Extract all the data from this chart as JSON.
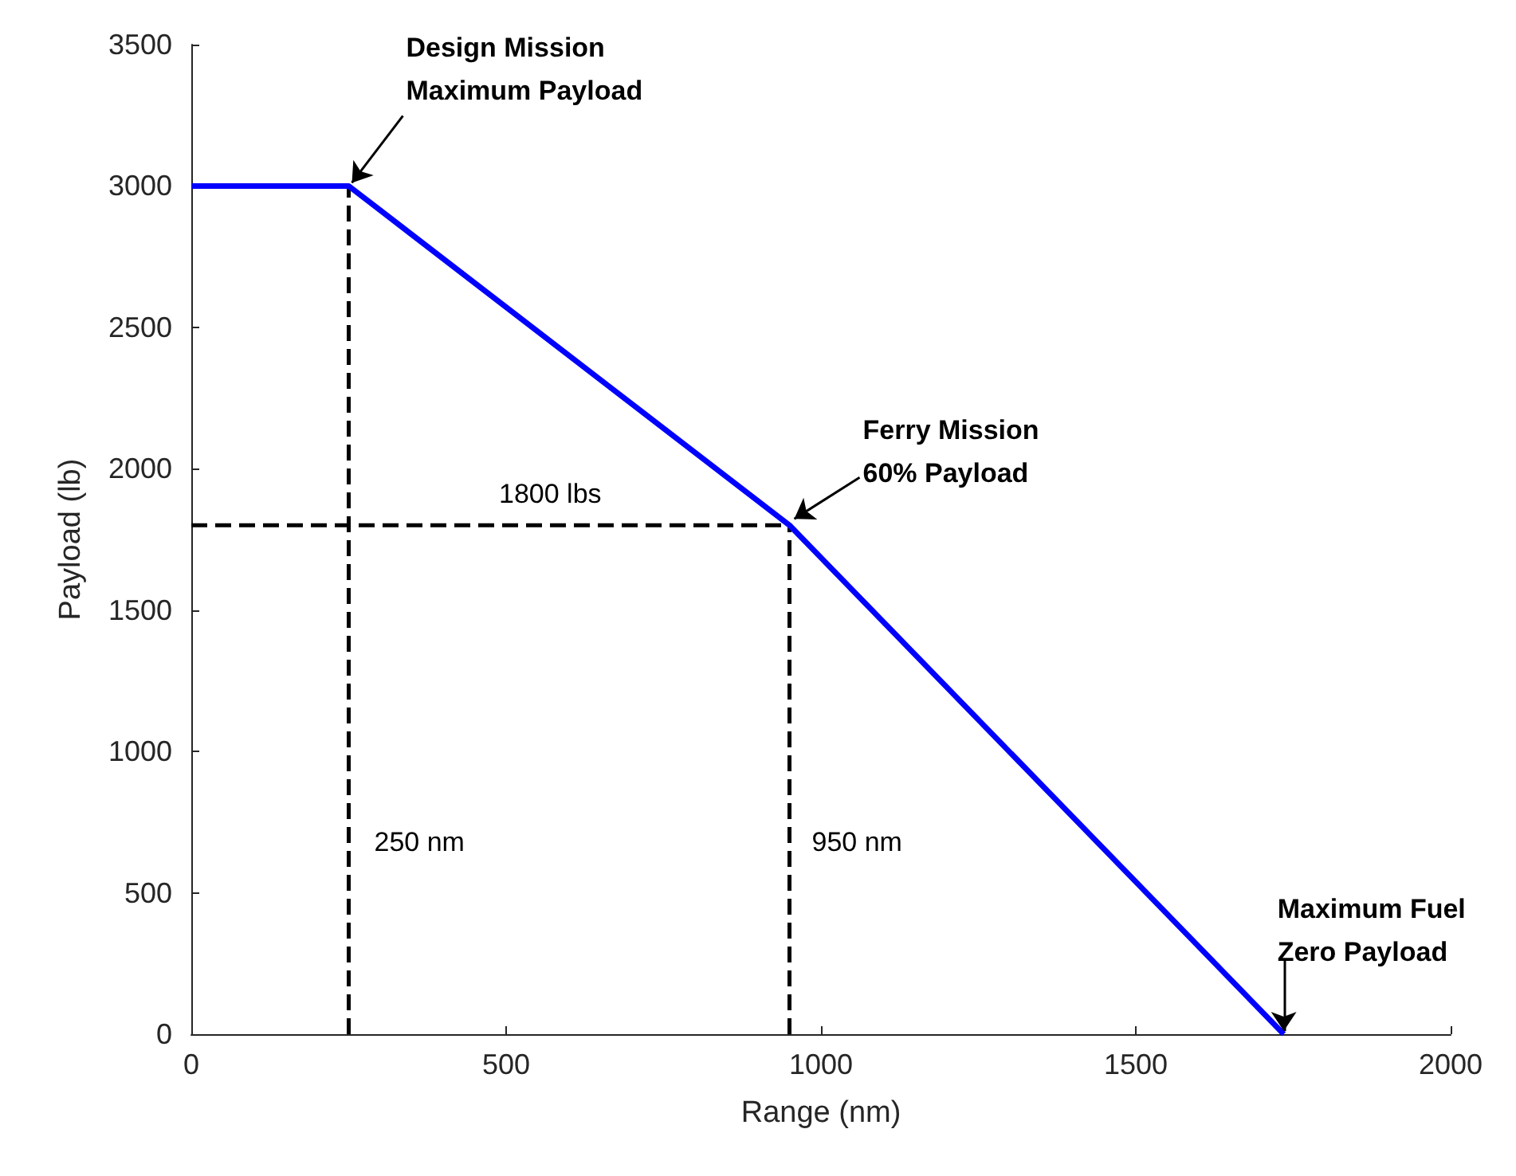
{
  "chart_data": {
    "type": "line",
    "xlabel": "Range (nm)",
    "ylabel": "Payload (lb)",
    "xlim": [
      0,
      2000
    ],
    "xticks": [
      0,
      500,
      1000,
      1500,
      2000
    ],
    "ylim": [
      0,
      3500
    ],
    "yticks": [
      0,
      500,
      1000,
      1500,
      2000,
      2500,
      3000,
      3500
    ],
    "grid": false,
    "marker": "none",
    "series": [
      {
        "color": "#0000ff",
        "x": [
          0,
          250,
          950,
          1735
        ],
        "values": [
          3000,
          3000,
          1800,
          0
        ],
        "line_style": "solid"
      },
      {
        "color": "#000000",
        "x": [
          250,
          250
        ],
        "values": [
          0,
          3000
        ],
        "line_style": "dashed"
      },
      {
        "color": "#000000",
        "x": [
          0,
          950
        ],
        "values": [
          1800,
          1800
        ],
        "line_style": "dashed"
      },
      {
        "color": "#000000",
        "x": [
          950,
          950
        ],
        "values": [
          0,
          1800
        ],
        "line_style": "dashed"
      }
    ],
    "annotations": [
      {
        "text": "Design Mission\nMaximum Payload",
        "x": 250,
        "y": 3000
      },
      {
        "text": "Ferry Mission\n60% Payload",
        "x": 950,
        "y": 1800
      },
      {
        "text": "Maximum Fuel\nZero Payload",
        "x": 1735,
        "y": 0
      },
      {
        "text": "1800 lbs",
        "x": 570,
        "y": 1800
      },
      {
        "text": "250 nm",
        "x": 250,
        "y": 700
      },
      {
        "text": "950 nm",
        "x": 950,
        "y": 700
      }
    ]
  }
}
